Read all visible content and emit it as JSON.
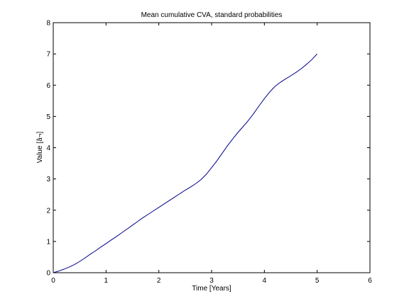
{
  "chart_data": {
    "type": "line",
    "title": "Mean cumulative CVA, standard probabilities",
    "xlabel": "Time [Years]",
    "ylabel": "Value [â¬]",
    "xlim": [
      0,
      6
    ],
    "ylim": [
      0,
      8
    ],
    "xticks": [
      0,
      1,
      2,
      3,
      4,
      5,
      6
    ],
    "yticks": [
      0,
      1,
      2,
      3,
      4,
      5,
      6,
      7,
      8
    ],
    "grid": false,
    "line_color": "#00008b",
    "series": [
      {
        "x": [
          0,
          0.1,
          0.2,
          0.3,
          0.4,
          0.5,
          0.6,
          0.7,
          0.8,
          0.9,
          1.0,
          1.1,
          1.2,
          1.3,
          1.4,
          1.5,
          1.6,
          1.7,
          1.8,
          1.9,
          2.0,
          2.1,
          2.2,
          2.3,
          2.4,
          2.5,
          2.6,
          2.7,
          2.8,
          2.9,
          3.0,
          3.1,
          3.2,
          3.3,
          3.4,
          3.5,
          3.6,
          3.7,
          3.8,
          3.9,
          4.0,
          4.1,
          4.2,
          4.3,
          4.4,
          4.5,
          4.6,
          4.7,
          4.8,
          4.9,
          5.0
        ],
        "y": [
          0,
          0.05,
          0.11,
          0.18,
          0.26,
          0.36,
          0.47,
          0.59,
          0.7,
          0.82,
          0.93,
          1.05,
          1.16,
          1.28,
          1.4,
          1.52,
          1.64,
          1.76,
          1.87,
          1.98,
          2.09,
          2.2,
          2.31,
          2.42,
          2.53,
          2.64,
          2.74,
          2.85,
          2.98,
          3.15,
          3.36,
          3.58,
          3.82,
          4.06,
          4.28,
          4.49,
          4.68,
          4.88,
          5.1,
          5.34,
          5.57,
          5.78,
          5.96,
          6.09,
          6.2,
          6.3,
          6.41,
          6.53,
          6.67,
          6.82,
          7.0
        ]
      }
    ]
  }
}
